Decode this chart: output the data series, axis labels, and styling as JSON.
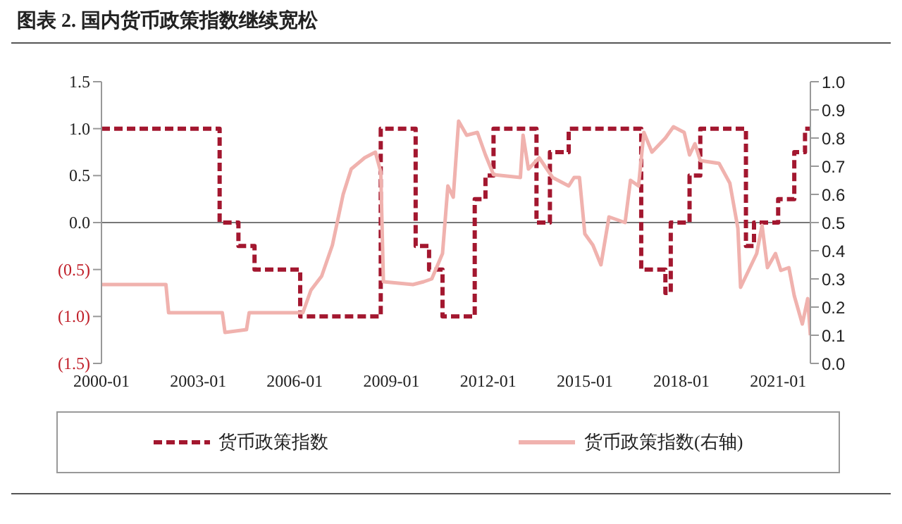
{
  "chart_data": {
    "type": "line",
    "title": "图表 2. 国内货币政策指数继续宽松",
    "xlim": [
      "2000-01",
      "2022-01"
    ],
    "xticks": [
      "2000-01",
      "2003-01",
      "2006-01",
      "2009-01",
      "2012-01",
      "2015-01",
      "2018-01",
      "2021-01"
    ],
    "ylim": [
      -1.5,
      1.5
    ],
    "yticks": [
      {
        "value": 1.5,
        "label": "1.5"
      },
      {
        "value": 1,
        "label": "1.0"
      },
      {
        "value": 0.5,
        "label": "0.5"
      },
      {
        "value": 0,
        "label": "0.0"
      },
      {
        "value": -0.5,
        "label": "(0.5)"
      },
      {
        "value": -1.0,
        "label": "(1.0)"
      },
      {
        "value": -1.5,
        "label": "(1.5)"
      }
    ],
    "y2lim": [
      0,
      1
    ],
    "y2ticks": [
      {
        "value": 0,
        "label": "0.0"
      },
      0.1,
      0.2,
      0.3,
      0.4,
      0.5,
      0.6,
      0.7,
      0.8,
      0.9,
      {
        "value": 1,
        "label": "1.0"
      }
    ],
    "grid": false,
    "legend": "bottom",
    "ref_lines": [
      {
        "axis": "y",
        "value": 0
      }
    ],
    "series": [
      {
        "name": "货币政策指数",
        "type": "step",
        "line_style": "dashed",
        "color": "#a3172f",
        "x": [
          "2000-01",
          "2003-09",
          "2004-04",
          "2004-10",
          "2006-03",
          "2008-09",
          "2009-10",
          "2010-03",
          "2010-08",
          "2011-08",
          "2011-12",
          "2012-03",
          "2013-07",
          "2013-12",
          "2014-07",
          "2016-10",
          "2017-07",
          "2017-09",
          "2018-04",
          "2018-08",
          "2020-01",
          "2020-04",
          "2021-01",
          "2021-07",
          "2021-11",
          "2022-01"
        ],
        "values": [
          1.0,
          0,
          -0.25,
          -0.5,
          -1.0,
          1.0,
          -0.25,
          -0.5,
          -1.0,
          0.25,
          0.5,
          1.0,
          0,
          0.75,
          1.0,
          -0.5,
          -0.75,
          0,
          0.5,
          1.0,
          -0.25,
          0,
          0.25,
          0.75,
          1.0,
          1.0
        ]
      },
      {
        "name": "货币政策指数(右轴)",
        "type": "line",
        "axis": "y2",
        "line_style": "solid",
        "color": "#f0b2ae",
        "x": [
          "2000-01",
          "2002-01",
          "2002-02",
          "2003-10",
          "2003-11",
          "2004-07",
          "2004-08",
          "2006-04",
          "2006-07",
          "2006-11",
          "2007-03",
          "2007-07",
          "2007-10",
          "2008-03",
          "2008-07",
          "2008-09",
          "2008-10",
          "2009-09",
          "2010-01",
          "2010-04",
          "2010-08",
          "2010-10",
          "2010-12",
          "2011-02",
          "2011-05",
          "2011-09",
          "2011-12",
          "2012-03",
          "2013-01",
          "2013-02",
          "2013-04",
          "2013-08",
          "2014-01",
          "2014-07",
          "2014-09",
          "2014-11",
          "2015-01",
          "2015-04",
          "2015-07",
          "2015-10",
          "2016-04",
          "2016-06",
          "2016-09",
          "2016-11",
          "2017-02",
          "2017-07",
          "2017-10",
          "2018-02",
          "2018-04",
          "2018-06",
          "2018-08",
          "2019-03",
          "2019-07",
          "2019-10",
          "2019-11",
          "2020-02",
          "2020-05",
          "2020-07",
          "2020-09",
          "2020-12",
          "2021-02",
          "2021-05",
          "2021-07",
          "2021-10",
          "2021-12",
          "2022-01"
        ],
        "values": [
          0.28,
          0.28,
          0.18,
          0.18,
          0.11,
          0.12,
          0.18,
          0.18,
          0.26,
          0.31,
          0.42,
          0.6,
          0.69,
          0.73,
          0.75,
          0.68,
          0.29,
          0.28,
          0.29,
          0.3,
          0.39,
          0.63,
          0.59,
          0.86,
          0.81,
          0.82,
          0.74,
          0.67,
          0.66,
          0.81,
          0.69,
          0.73,
          0.66,
          0.63,
          0.66,
          0.66,
          0.46,
          0.42,
          0.35,
          0.52,
          0.5,
          0.65,
          0.63,
          0.82,
          0.75,
          0.8,
          0.84,
          0.82,
          0.74,
          0.78,
          0.72,
          0.71,
          0.64,
          0.48,
          0.27,
          0.33,
          0.39,
          0.49,
          0.34,
          0.39,
          0.33,
          0.34,
          0.24,
          0.14,
          0.23,
          0.1
        ]
      }
    ]
  }
}
